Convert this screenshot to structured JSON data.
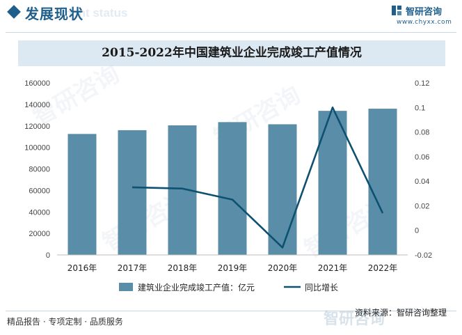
{
  "header": {
    "title": "发展现状",
    "subtitle_watermark": "ment status",
    "brand_name": "智研咨询",
    "brand_url": "www.chyxx.com"
  },
  "chart_data": {
    "type": "bar",
    "title": "2015-2022年中国建筑业企业完成竣工产值情况",
    "categories": [
      "2016年",
      "2017年",
      "2018年",
      "2019年",
      "2020年",
      "2021年",
      "2022年"
    ],
    "series": [
      {
        "name": "建筑业企业完成竣工产值：亿元",
        "type": "bar",
        "axis": "left",
        "color": "#5a8ea8",
        "values": [
          112500,
          116000,
          120500,
          123500,
          121500,
          134000,
          136000
        ]
      },
      {
        "name": "同比增长",
        "type": "line",
        "axis": "right",
        "color": "#0d5070",
        "values": [
          null,
          0.035,
          0.034,
          0.025,
          -0.014,
          0.1,
          0.014
        ]
      }
    ],
    "ylim_left": [
      0,
      160000
    ],
    "yticks_left": [
      "0",
      "20000",
      "40000",
      "60000",
      "80000",
      "100000",
      "120000",
      "140000",
      "160000"
    ],
    "ylim_right": [
      -0.02,
      0.12
    ],
    "yticks_right": [
      "-0.02",
      "0",
      "0.02",
      "0.04",
      "0.06",
      "0.08",
      "0.1",
      "0.12"
    ],
    "grid": false,
    "legend_position": "bottom"
  },
  "watermark_text": "智研咨询",
  "footer": {
    "left": "精品报告 · 专项定制 · 品质服务",
    "source": "资料来源：智研咨询整理",
    "brand": "智研咨询"
  }
}
